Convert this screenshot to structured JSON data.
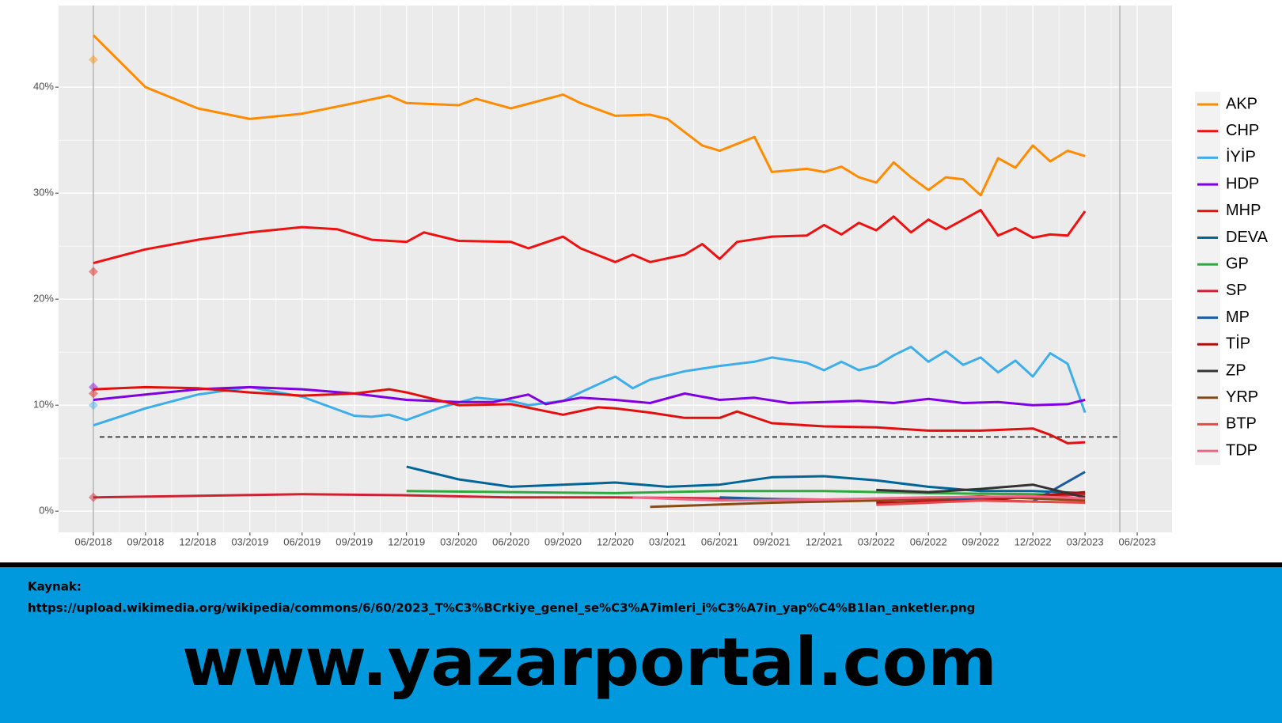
{
  "chart_data": {
    "type": "line",
    "xlim": [
      "04/2018",
      "08/2023"
    ],
    "xticks": [
      "06/2018",
      "09/2018",
      "12/2018",
      "03/2019",
      "06/2019",
      "09/2019",
      "12/2019",
      "03/2020",
      "06/2020",
      "09/2020",
      "12/2020",
      "03/2021",
      "06/2021",
      "09/2021",
      "12/2021",
      "03/2022",
      "06/2022",
      "09/2022",
      "12/2022",
      "03/2023",
      "06/2023"
    ],
    "ylim": [
      -2,
      47.7
    ],
    "yticks": [
      {
        "value": 0,
        "label": "0%"
      },
      {
        "value": 10,
        "label": "10%"
      },
      {
        "value": 20,
        "label": "20%"
      },
      {
        "value": 30,
        "label": "30%"
      },
      {
        "value": 40,
        "label": "40%"
      }
    ],
    "grid": true,
    "vlines": [
      "06/2018",
      "05/2023"
    ],
    "hline": 7,
    "legend": "right",
    "series": [
      {
        "name": "AKP",
        "color": "#ff8c00",
        "election": 42.6,
        "x": [
          "06/2018",
          "09/2018",
          "12/2018",
          "03/2019",
          "06/2019",
          "09/2019",
          "11/2019",
          "12/2019",
          "03/2020",
          "04/2020",
          "06/2020",
          "09/2020",
          "10/2020",
          "12/2020",
          "02/2021",
          "03/2021",
          "05/2021",
          "06/2021",
          "08/2021",
          "09/2021",
          "11/2021",
          "12/2021",
          "01/2022",
          "02/2022",
          "03/2022",
          "04/2022",
          "05/2022",
          "06/2022",
          "07/2022",
          "08/2022",
          "09/2022",
          "10/2022",
          "11/2022",
          "12/2022",
          "01/2023",
          "02/2023",
          "03/2023"
        ],
        "values": [
          44.9,
          40,
          38,
          37,
          37.5,
          38.5,
          39.2,
          38.5,
          38.3,
          38.9,
          38,
          39.3,
          38.5,
          37.3,
          37.4,
          37,
          34.5,
          34,
          35.3,
          32,
          32.3,
          32,
          32.5,
          31.5,
          31,
          32.9,
          31.5,
          30.3,
          31.5,
          31.3,
          29.8,
          33.3,
          32.4,
          34.5,
          33,
          34,
          33.5
        ]
      },
      {
        "name": "CHP",
        "color": "#ee1111",
        "election": 22.6,
        "x": [
          "06/2018",
          "09/2018",
          "12/2018",
          "03/2019",
          "06/2019",
          "08/2019",
          "10/2019",
          "12/2019",
          "01/2020",
          "03/2020",
          "06/2020",
          "07/2020",
          "09/2020",
          "10/2020",
          "12/2020",
          "01/2021",
          "02/2021",
          "04/2021",
          "05/2021",
          "06/2021",
          "07/2021",
          "09/2021",
          "11/2021",
          "12/2021",
          "01/2022",
          "02/2022",
          "03/2022",
          "04/2022",
          "05/2022",
          "06/2022",
          "07/2022",
          "08/2022",
          "09/2022",
          "10/2022",
          "11/2022",
          "12/2022",
          "01/2023",
          "02/2023",
          "03/2023"
        ],
        "values": [
          23.4,
          24.7,
          25.6,
          26.3,
          26.8,
          26.6,
          25.6,
          25.4,
          26.3,
          25.5,
          25.4,
          24.8,
          25.9,
          24.8,
          23.5,
          24.2,
          23.5,
          24.2,
          25.2,
          23.8,
          25.4,
          25.9,
          26,
          27,
          26.1,
          27.2,
          26.5,
          27.8,
          26.3,
          27.5,
          26.6,
          27.5,
          28.4,
          26,
          26.7,
          25.8,
          26.1,
          26,
          28.3
        ]
      },
      {
        "name": "İYİP",
        "color": "#3daee9",
        "election": 10.0,
        "x": [
          "06/2018",
          "09/2018",
          "12/2018",
          "03/2019",
          "06/2019",
          "09/2019",
          "10/2019",
          "11/2019",
          "12/2019",
          "02/2020",
          "04/2020",
          "06/2020",
          "07/2020",
          "09/2020",
          "10/2020",
          "12/2020",
          "01/2021",
          "02/2021",
          "04/2021",
          "06/2021",
          "08/2021",
          "09/2021",
          "11/2021",
          "12/2021",
          "01/2022",
          "02/2022",
          "03/2022",
          "04/2022",
          "05/2022",
          "06/2022",
          "07/2022",
          "08/2022",
          "09/2022",
          "10/2022",
          "11/2022",
          "12/2022",
          "01/2023",
          "02/2023",
          "03/2023"
        ],
        "values": [
          8.1,
          9.7,
          11,
          11.7,
          10.8,
          9,
          8.9,
          9.1,
          8.6,
          9.8,
          10.7,
          10.4,
          10,
          10.4,
          11.2,
          12.7,
          11.6,
          12.4,
          13.2,
          13.7,
          14.1,
          14.5,
          14,
          13.3,
          14.1,
          13.3,
          13.7,
          14.7,
          15.5,
          14.1,
          15.1,
          13.8,
          14.5,
          13.1,
          14.2,
          12.7,
          14.9,
          13.9,
          9.3
        ]
      },
      {
        "name": "HDP",
        "color": "#8000e0",
        "election": 11.7,
        "x": [
          "06/2018",
          "09/2018",
          "12/2018",
          "03/2019",
          "06/2019",
          "09/2019",
          "12/2019",
          "03/2020",
          "05/2020",
          "07/2020",
          "08/2020",
          "10/2020",
          "12/2020",
          "02/2021",
          "04/2021",
          "06/2021",
          "08/2021",
          "10/2021",
          "12/2021",
          "02/2022",
          "04/2022",
          "06/2022",
          "08/2022",
          "10/2022",
          "12/2022",
          "02/2023",
          "03/2023"
        ],
        "values": [
          10.5,
          11,
          11.5,
          11.7,
          11.5,
          11.1,
          10.5,
          10.3,
          10.3,
          11,
          10.1,
          10.7,
          10.5,
          10.2,
          11.1,
          10.5,
          10.7,
          10.2,
          10.3,
          10.4,
          10.2,
          10.6,
          10.2,
          10.3,
          10,
          10.1,
          10.5
        ]
      },
      {
        "name": "MHP",
        "color": "#e01010",
        "election": 11.1,
        "x": [
          "06/2018",
          "09/2018",
          "12/2018",
          "03/2019",
          "06/2019",
          "09/2019",
          "11/2019",
          "12/2019",
          "03/2020",
          "06/2020",
          "09/2020",
          "11/2020",
          "12/2020",
          "02/2021",
          "04/2021",
          "06/2021",
          "07/2021",
          "09/2021",
          "12/2021",
          "03/2022",
          "06/2022",
          "09/2022",
          "12/2022",
          "01/2023",
          "02/2023",
          "03/2023"
        ],
        "values": [
          11.5,
          11.7,
          11.6,
          11.2,
          10.9,
          11.1,
          11.5,
          11.2,
          10,
          10.1,
          9.1,
          9.8,
          9.7,
          9.3,
          8.8,
          8.8,
          9.4,
          8.3,
          8,
          7.9,
          7.6,
          7.6,
          7.8,
          7.2,
          6.4,
          6.5
        ]
      },
      {
        "name": "DEVA",
        "color": "#006699",
        "x": [
          "12/2019",
          "03/2020",
          "06/2020",
          "09/2020",
          "12/2020",
          "03/2021",
          "06/2021",
          "09/2021",
          "12/2021",
          "03/2022",
          "06/2022",
          "09/2022",
          "12/2022",
          "03/2023"
        ],
        "values": [
          4.2,
          3,
          2.3,
          2.5,
          2.7,
          2.3,
          2.5,
          3.2,
          3.3,
          2.9,
          2.3,
          1.9,
          1.9,
          1.7
        ]
      },
      {
        "name": "GP",
        "color": "#2eaa3d",
        "x": [
          "12/2019",
          "06/2020",
          "12/2020",
          "06/2021",
          "12/2021",
          "06/2022",
          "12/2022",
          "03/2023"
        ],
        "values": [
          1.9,
          1.8,
          1.7,
          1.9,
          1.9,
          1.7,
          1.6,
          1.5
        ]
      },
      {
        "name": "SP",
        "color": "#cc2233",
        "election": 1.3,
        "x": [
          "06/2018",
          "06/2019",
          "12/2019",
          "06/2020",
          "12/2020",
          "06/2021",
          "12/2021",
          "06/2022",
          "12/2022",
          "03/2023"
        ],
        "values": [
          1.3,
          1.6,
          1.5,
          1.3,
          1.3,
          1.2,
          1.1,
          1.1,
          1.3,
          1.6
        ]
      },
      {
        "name": "MP",
        "color": "#1a5c9e",
        "x": [
          "06/2021",
          "12/2021",
          "06/2022",
          "12/2022",
          "03/2023"
        ],
        "values": [
          1.3,
          1,
          1.2,
          0.9,
          3.7
        ]
      },
      {
        "name": "TİP",
        "color": "#aa1111",
        "x": [
          "03/2022",
          "09/2022",
          "03/2023"
        ],
        "values": [
          0.8,
          1,
          1.8
        ]
      },
      {
        "name": "ZP",
        "color": "#333333",
        "x": [
          "03/2022",
          "06/2022",
          "09/2022",
          "12/2022",
          "03/2023"
        ],
        "values": [
          2,
          1.8,
          2.1,
          2.5,
          1.3
        ]
      },
      {
        "name": "YRP",
        "color": "#8b4a12",
        "x": [
          "02/2021",
          "09/2021",
          "03/2022",
          "09/2022",
          "03/2023"
        ],
        "values": [
          0.4,
          0.8,
          1,
          1.4,
          1
        ]
      },
      {
        "name": "BTP",
        "color": "#e84a4a",
        "x": [
          "03/2022",
          "09/2022",
          "03/2023"
        ],
        "values": [
          0.6,
          1,
          0.8
        ]
      },
      {
        "name": "TDP",
        "color": "#ee6688",
        "x": [
          "01/2021",
          "06/2021",
          "12/2021",
          "06/2022",
          "12/2022",
          "03/2023"
        ],
        "values": [
          1.3,
          1,
          1.1,
          1.3,
          1.4,
          1.2
        ]
      }
    ]
  },
  "footer": {
    "source_label": "Kaynak:",
    "source_url": "https://upload.wikimedia.org/wikipedia/commons/6/60/2023_T%C3%BCrkiye_genel_se%C3%A7imleri_i%C3%A7in_yap%C4%B1lan_anketler.png",
    "site": "www.yazarportal.com"
  }
}
